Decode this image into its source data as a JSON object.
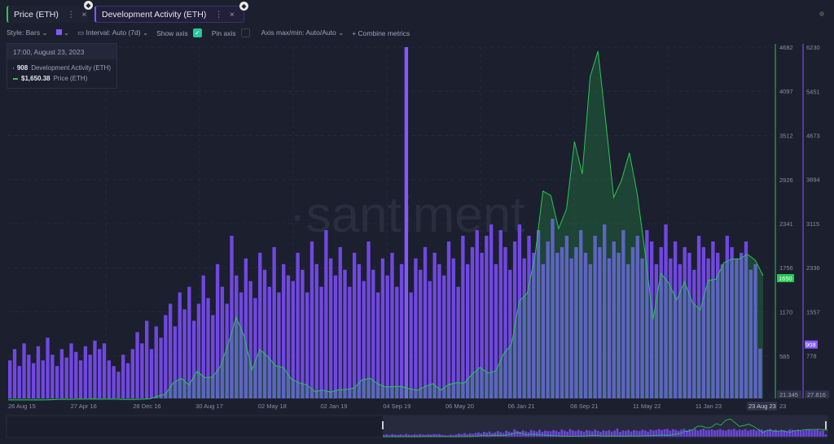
{
  "tabs": [
    {
      "label": "Price (ETH)",
      "color": "#26c953"
    },
    {
      "label": "Development Activity (ETH)",
      "color": "#8358ff"
    }
  ],
  "toolbar": {
    "style": "Style: Bars",
    "interval": "Interval: Auto (7d)",
    "show_axis": "Show axis",
    "pin_axis": "Pin axis",
    "axis_maxmin": "Axis max/min: Auto/Auto",
    "combine": "Combine metrics"
  },
  "legend": {
    "date": "17:00, August 23, 2023",
    "dev_value": "908",
    "dev_label": "Development Activity (ETH)",
    "price_value": "$1,650.38",
    "price_label": "Price (ETH)"
  },
  "watermark": "·santiment",
  "chart_data": {
    "type": "bar+area",
    "x_ticks": [
      "26 Aug 15",
      "27 Apr 16",
      "28 Dec 16",
      "30 Aug 17",
      "02 May 18",
      "02 Jan 19",
      "04 Sep 19",
      "06 May 20",
      "06 Jan 21",
      "08 Sep 21",
      "11 May 22",
      "11 Jan 23"
    ],
    "x_highlight": "23 Aug 23",
    "x_trailing": "23",
    "price_axis": {
      "ticks": [
        "4682",
        "4097",
        "3512",
        "2926",
        "2341",
        "1756",
        "1170",
        "585"
      ],
      "min": 21.345,
      "max": 4682,
      "min_label": "21.345",
      "current": "1650"
    },
    "dev_axis": {
      "ticks": [
        "6230",
        "5451",
        "4673",
        "3894",
        "3115",
        "2336",
        "1557",
        "778"
      ],
      "min": 27.816,
      "max": 6230,
      "min_label": "27.816",
      "current": "908"
    },
    "series": [
      {
        "name": "Development Activity (ETH)",
        "color": "#8358ff",
        "values": [
          700,
          900,
          600,
          1000,
          800,
          650,
          950,
          700,
          1100,
          800,
          600,
          900,
          750,
          1000,
          850,
          700,
          950,
          800,
          1050,
          900,
          1000,
          700,
          600,
          500,
          800,
          650,
          900,
          1200,
          1000,
          1400,
          900,
          1300,
          1100,
          1500,
          1700,
          1300,
          1900,
          1600,
          2000,
          1400,
          1700,
          2200,
          1800,
          1500,
          2400,
          2000,
          1700,
          2900,
          2200,
          1900,
          2500,
          2100,
          1800,
          2600,
          2300,
          2000,
          2700,
          1900,
          2400,
          2200,
          2100,
          2600,
          2300,
          1900,
          2800,
          2400,
          2000,
          3000,
          2500,
          2200,
          2700,
          2300,
          2000,
          2600,
          2400,
          2100,
          2800,
          2300,
          1900,
          2500,
          2200,
          2600,
          2000,
          2400,
          6230,
          1900,
          2500,
          2300,
          2700,
          2100,
          2600,
          2400,
          2200,
          2800,
          2500,
          2000,
          2900,
          2400,
          2700,
          3000,
          2600,
          2900,
          3100,
          2400,
          3000,
          2700,
          2300,
          2800,
          3100,
          2500,
          2900,
          2600,
          3000,
          2400,
          2800,
          3200,
          2600,
          2700,
          2900,
          2500,
          2700,
          3000,
          2600,
          2400,
          2900,
          2700,
          3100,
          2500,
          2800,
          2600,
          3000,
          2400,
          2700,
          2900,
          2500,
          3000,
          2800,
          2400,
          2700,
          3100,
          2500,
          2800,
          2400,
          2700,
          2600,
          2300,
          2900,
          2700,
          2500,
          2800,
          2600,
          2400,
          2900,
          2700,
          2500,
          2600,
          2800,
          2300,
          2400,
          908
        ]
      },
      {
        "name": "Price (ETH)",
        "color": "#26c953",
        "values": [
          1.2,
          0.9,
          0.9,
          0.9,
          0.9,
          2.2,
          6,
          11,
          8.8,
          14,
          12,
          12.5,
          11,
          13,
          11,
          8.6,
          8,
          10.7,
          16,
          50,
          80,
          230,
          290,
          200,
          380,
          300,
          305,
          450,
          750,
          1100,
          850,
          400,
          670,
          580,
          455,
          433,
          280,
          230,
          200,
          113,
          133,
          107,
          136,
          141,
          160,
          268,
          290,
          218,
          172,
          180,
          182,
          151,
          130,
          180,
          218,
          133,
          206,
          231,
          225,
          345,
          434,
          360,
          386,
          615,
          737,
          1314,
          1416,
          1919,
          2773,
          2714,
          2275,
          2536,
          3430,
          3000,
          4288,
          4630,
          3680,
          2688,
          2920,
          3282,
          2727,
          1942,
          1070,
          1680,
          1553,
          1328,
          1572,
          1295,
          1196,
          1585,
          1605,
          1822,
          1870,
          1874,
          1934,
          1857,
          1650
        ]
      }
    ]
  }
}
